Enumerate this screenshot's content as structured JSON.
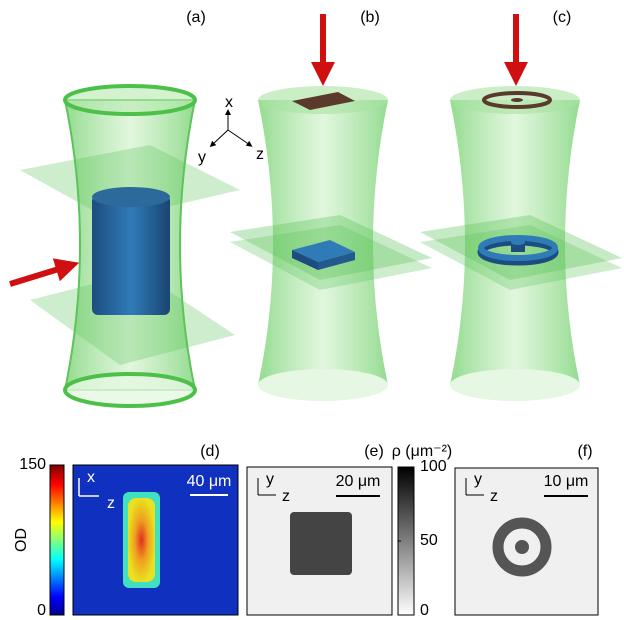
{
  "panels": {
    "a": {
      "label": "(a)",
      "axes": {
        "x": "x",
        "y": "y",
        "z": "z"
      }
    },
    "b": {
      "label": "(b)"
    },
    "c": {
      "label": "(c)"
    },
    "d": {
      "label": "(d)",
      "scale_bar": "40 μm",
      "axis_x": "x",
      "axis_z": "z",
      "colorbar": {
        "title": "OD",
        "lim": [
          0,
          150
        ],
        "ticks": [
          0,
          150
        ]
      }
    },
    "e": {
      "label": "(e)",
      "scale_bar": "20 μm",
      "axis_y": "y",
      "axis_z": "z",
      "colorbar": {
        "title": "ρ (μm⁻²)",
        "lim": [
          0,
          100
        ],
        "ticks": [
          0,
          50,
          100
        ]
      }
    },
    "f": {
      "label": "(f)",
      "scale_bar": "10 μm",
      "axis_y": "y",
      "axis_z": "z"
    }
  }
}
